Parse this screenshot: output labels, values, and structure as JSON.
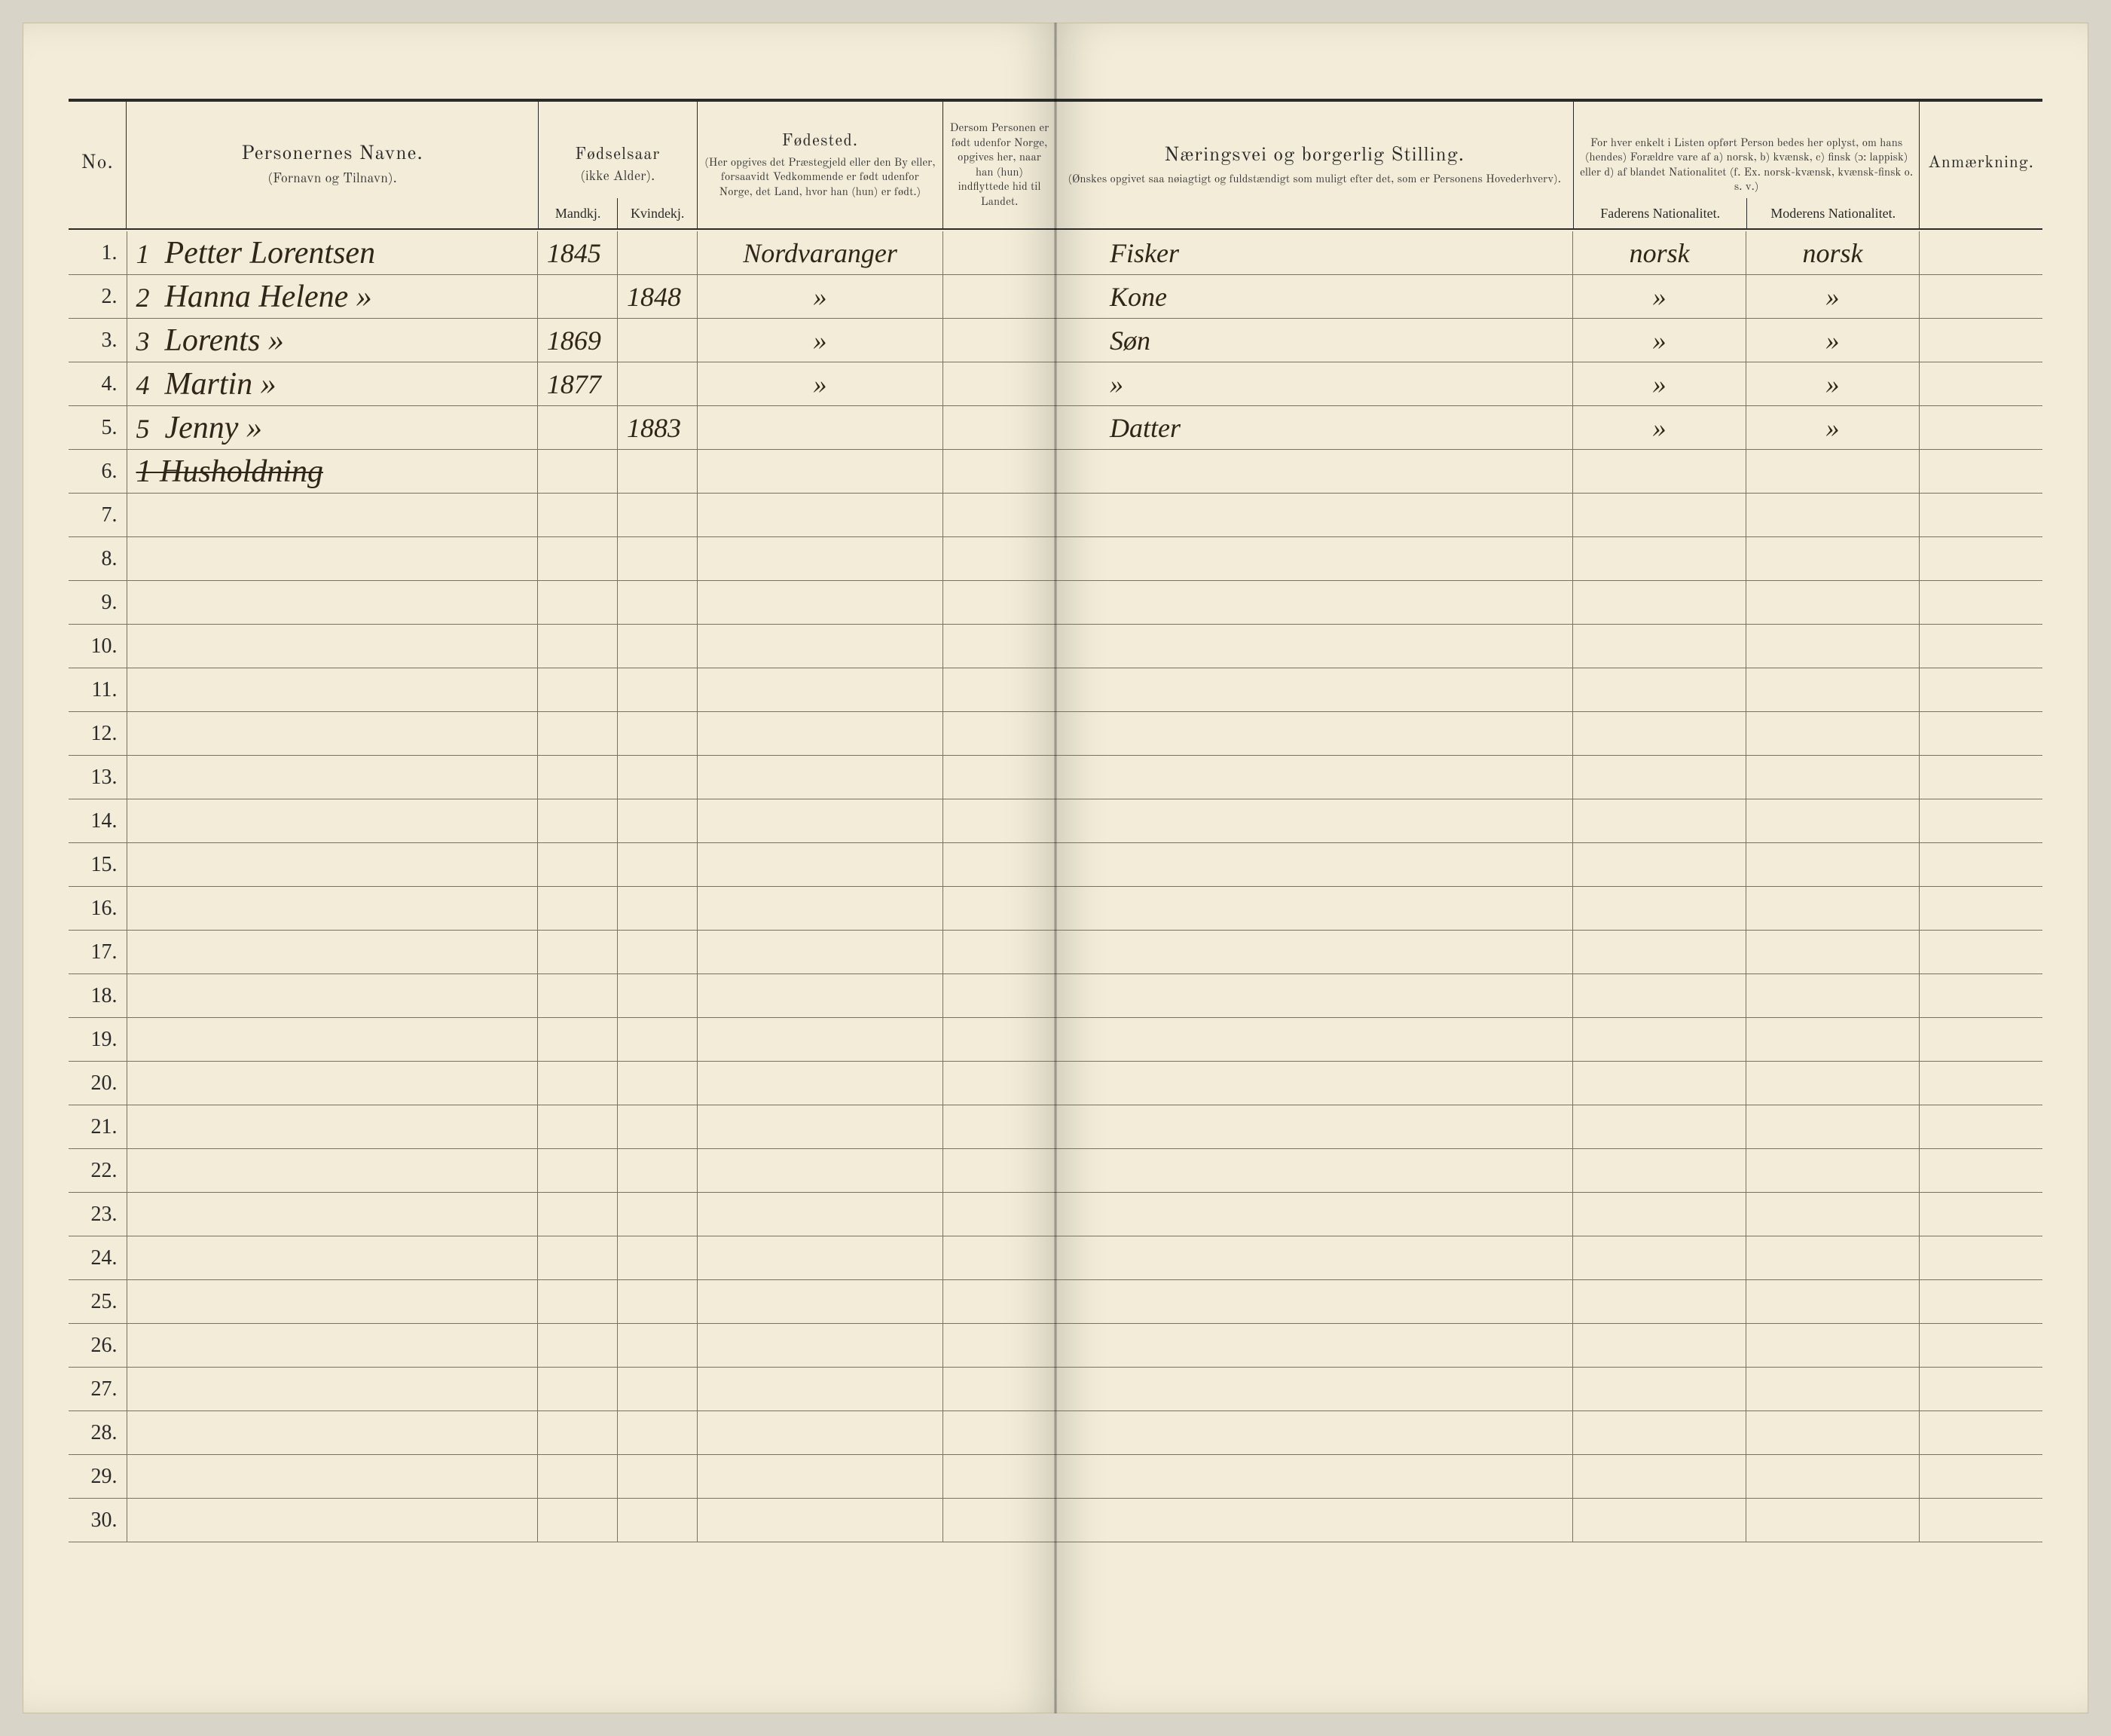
{
  "colors": {
    "page_bg": "#f2ecd8",
    "outer_bg": "#d8d4c8",
    "rule": "#2a2a2a",
    "row_rule": "#7a7260",
    "ink_print": "#2a2a2a",
    "ink_hand": "#2f2518"
  },
  "typography": {
    "print_family": "Georgia, serif",
    "hand_family": "Brush Script MT, cursive",
    "header_main_size": 26,
    "header_sub_size": 18,
    "row_num_size": 28,
    "hand_size": 42
  },
  "left_headers": {
    "no": "No.",
    "names_main": "Personernes Navne.",
    "names_sub": "(Fornavn og Tilnavn).",
    "birthyear_main": "Fødselsaar",
    "birthyear_sub": "(ikke Alder).",
    "male": "Mandkj.",
    "female": "Kvindekj.",
    "birthplace_main": "Fødested.",
    "birthplace_sub": "(Her opgives det Præstegjeld eller den By eller, forsaavidt Vedkommende er født udenfor Norge, det Land, hvor han (hun) er født.)",
    "abroad_main": "Dersom Personen er født udenfor Norge,",
    "abroad_sub": "opgives her, naar han (hun) indflyttede hid til Landet."
  },
  "right_headers": {
    "occupation_main": "Næringsvei og borgerlig Stilling.",
    "occupation_sub": "(Ønskes opgivet saa nøiagtigt og fuldstændigt som muligt efter det, som er Personens Hovederhverv).",
    "nationality_top": "For hver enkelt i Listen opført Person bedes her oplyst, om hans (hendes) Forældre vare af a) norsk, b) kvænsk, c) finsk (ɔ: lappisk) eller d) af blandet Nationalitet (f. Ex. norsk-kvænsk, kvænsk-finsk o. s. v.)",
    "father_nat": "Faderens Nationalitet.",
    "mother_nat": "Moderens Nationalitet.",
    "remark": "Anmærkning."
  },
  "row_count": 30,
  "entries": [
    {
      "idx": 1,
      "hand_no": "1",
      "name": "Petter Lorentsen",
      "year_m": "1845",
      "year_f": "",
      "place": "Nordvaranger",
      "occupation": "Fisker",
      "father_nat": "norsk",
      "mother_nat": "norsk"
    },
    {
      "idx": 2,
      "hand_no": "2",
      "name": "Hanna Helene     »",
      "year_m": "",
      "year_f": "1848",
      "place": "»",
      "occupation": "Kone",
      "father_nat": "»",
      "mother_nat": "»"
    },
    {
      "idx": 3,
      "hand_no": "3",
      "name": "Lorents     »",
      "year_m": "1869",
      "year_f": "",
      "place": "»",
      "occupation": "Søn",
      "father_nat": "»",
      "mother_nat": "»"
    },
    {
      "idx": 4,
      "hand_no": "4",
      "name": "Martin     »",
      "year_m": "1877",
      "year_f": "",
      "place": "»",
      "occupation": "»",
      "father_nat": "»",
      "mother_nat": "»"
    },
    {
      "idx": 5,
      "hand_no": "5",
      "name": "Jenny     »",
      "year_m": "",
      "year_f": "1883",
      "place": "",
      "occupation": "Datter",
      "father_nat": "»",
      "mother_nat": "»"
    }
  ],
  "footnote_row": 6,
  "footnote_text": "1 Husholdning",
  "row_numbers": [
    "1.",
    "2.",
    "3.",
    "4.",
    "5.",
    "6.",
    "7.",
    "8.",
    "9.",
    "10.",
    "11.",
    "12.",
    "13.",
    "14.",
    "15.",
    "16.",
    "17.",
    "18.",
    "19.",
    "20.",
    "21.",
    "22.",
    "23.",
    "24.",
    "25.",
    "26.",
    "27.",
    "28.",
    "29.",
    "30."
  ]
}
